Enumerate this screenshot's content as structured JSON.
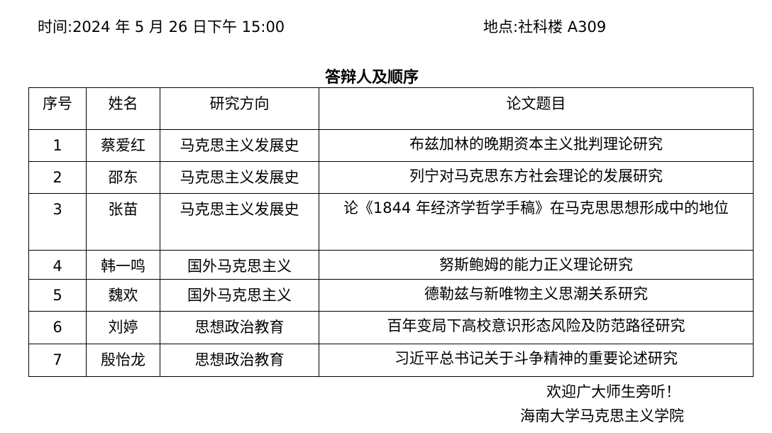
{
  "header": {
    "time": "时间:2024 年 5 月 26 日下午  15:00",
    "place": "地点:社科楼 A309"
  },
  "title": "答辩人及顺序",
  "table": {
    "columns": [
      "序号",
      "姓名",
      "研究方向",
      "论文题目"
    ],
    "rows": [
      [
        "1",
        "蔡爱红",
        "马克思主义发展史",
        "布兹加林的晚期资本主义批判理论研究"
      ],
      [
        "2",
        "邵东",
        "马克思主义发展史",
        "列宁对马克思东方社会理论的发展研究"
      ],
      [
        "3",
        "张苗",
        "马克思主义发展史",
        "论《1844 年经济学哲学手稿》在马克思思想形成中的地位"
      ],
      [
        "4",
        "韩一鸣",
        "国外马克思主义",
        "努斯鲍姆的能力正义理论研究"
      ],
      [
        "5",
        "魏欢",
        "国外马克思主义",
        "德勒兹与新唯物主义思潮关系研究"
      ],
      [
        "6",
        "刘婷",
        "思想政治教育",
        "百年变局下高校意识形态风险及防范路径研究"
      ],
      [
        "7",
        "殷怡龙",
        "思想政治教育",
        "习近平总书记关于斗争精神的重要论述研究"
      ]
    ]
  },
  "footer": {
    "welcome": "欢迎广大师生旁听！",
    "school": "海南大学马克思主义学院"
  }
}
